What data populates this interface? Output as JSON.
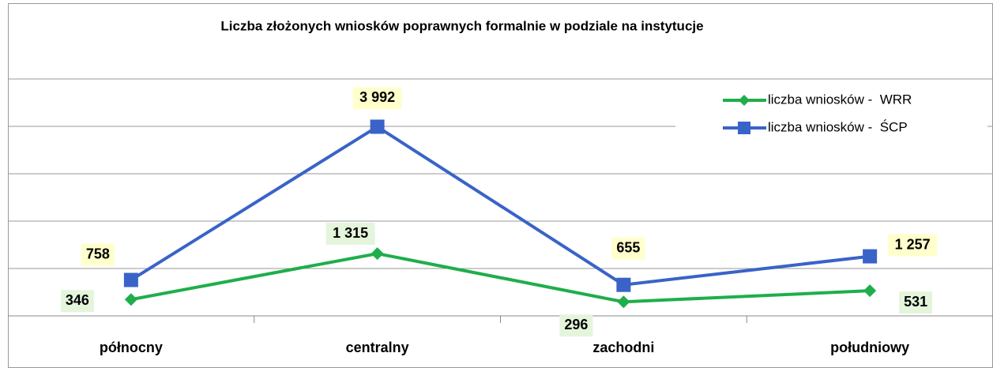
{
  "chart_data": {
    "type": "line",
    "title": "Liczba złożonych wniosków poprawnych formalnie w podziale na instytucje",
    "categories": [
      "północny",
      "centralny",
      "zachodni",
      "południowy"
    ],
    "series": [
      {
        "name": "liczba wniosków -  WRR",
        "color": "#1fae4b",
        "marker": "diamond",
        "values": [
          346,
          1315,
          296,
          531
        ],
        "value_labels": [
          "346",
          "1 315",
          "296",
          "531"
        ]
      },
      {
        "name": "liczba wniosków -  ŚCP",
        "color": "#3a63c8",
        "marker": "square",
        "values": [
          758,
          3992,
          655,
          1257
        ],
        "value_labels": [
          "758",
          "3 992",
          "655",
          "1 257"
        ]
      }
    ],
    "ylim": [
      0,
      5000
    ],
    "yticks": [
      0,
      1000,
      2000,
      3000,
      4000,
      5000
    ],
    "grid": true,
    "legend": "top-right"
  }
}
